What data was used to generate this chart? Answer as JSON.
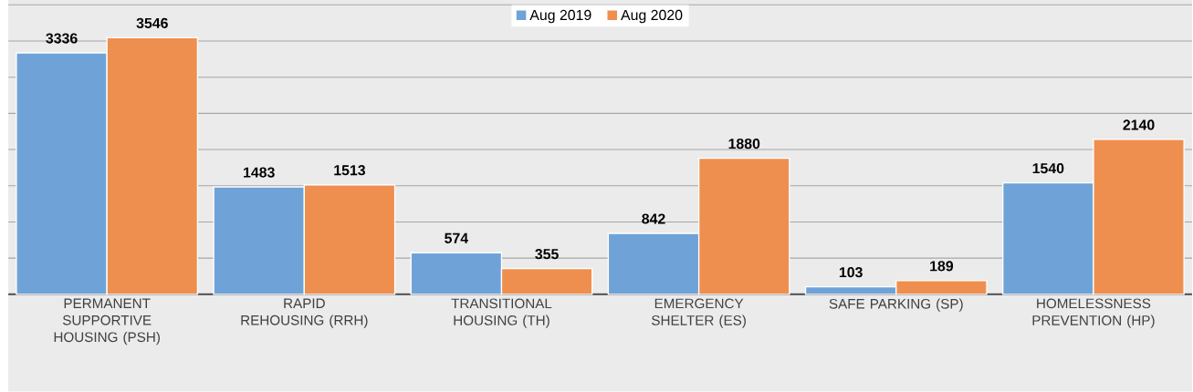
{
  "chart_data": {
    "type": "bar",
    "categories": [
      "PERMANENT SUPPORTIVE HOUSING (PSH)",
      "RAPID REHOUSING (RRH)",
      "TRANSITIONAL HOUSING (TH)",
      "EMERGENCY SHELTER (ES)",
      "SAFE PARKING (SP)",
      "HOMELESSNESS PREVENTION (HP)"
    ],
    "series": [
      {
        "name": "Aug 2019",
        "color": "#6fa3d8",
        "values": [
          3336,
          1483,
          574,
          842,
          103,
          1540
        ]
      },
      {
        "name": "Aug 2020",
        "color": "#ef8f4f",
        "values": [
          3546,
          1513,
          355,
          1880,
          189,
          2140
        ]
      }
    ],
    "ylim": [
      0,
      4000
    ],
    "grid": "y",
    "legend": "top",
    "data_labels": true,
    "tick_labels": "x"
  }
}
